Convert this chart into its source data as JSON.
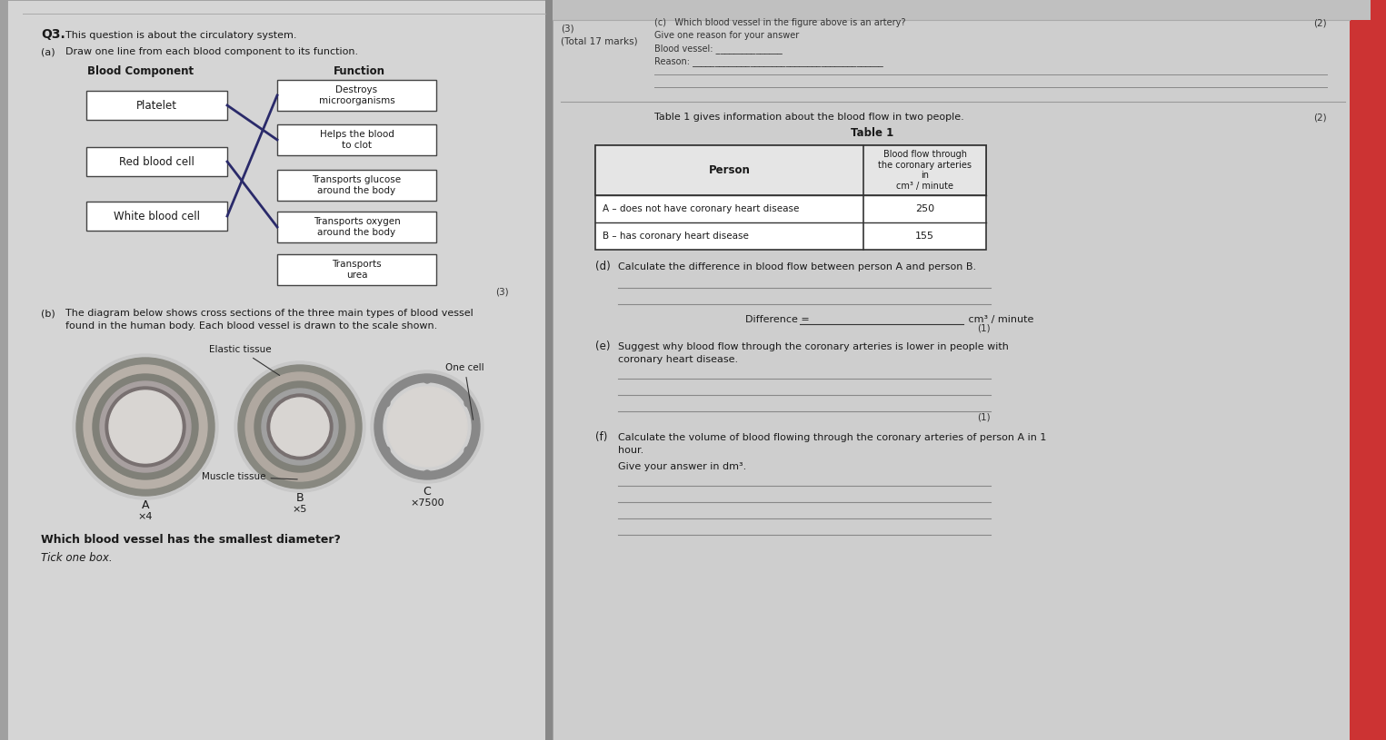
{
  "bg_color": "#b0b0b0",
  "page_bg_left": "#d8d8d8",
  "page_bg_right": "#d0d0d0",
  "q3_title": "Q3.",
  "q3_subtitle": "This question is about the circulatory system.",
  "part_a_label": "(a)",
  "part_a_text": "Draw one line from each blood component to its function.",
  "blood_component_header": "Blood Component",
  "function_header": "Function",
  "components": [
    "Platelet",
    "Red blood cell",
    "White blood cell"
  ],
  "functions": [
    "Destroys\nmicroorganisms",
    "Helps the blood\nto clot",
    "Transports glucose\naround the body",
    "Transports oxygen\naround the body",
    "Transports\nurea"
  ],
  "part_b_label": "(b)",
  "part_b_text_1": "The diagram below shows cross sections of the three main types of blood vessel",
  "part_b_text_2": "found in the human body. Each blood vessel is drawn to the scale shown.",
  "elastic_tissue_label": "Elastic tissue",
  "muscle_tissue_label": "Muscle tissue",
  "one_cell_label": "One cell",
  "vessel_a_label": "A",
  "vessel_a_scale": "×4",
  "vessel_b_label": "B",
  "vessel_b_scale": "×5",
  "vessel_c_label": "C",
  "vessel_c_scale": "×7500",
  "which_vessel_q": "Which blood vessel has the smallest diameter?",
  "tick_one_box": "Tick one box.",
  "marks_3": "(3)",
  "total_marks": "(Total 17 marks)",
  "top_c_question": "(c)   Which blood vessel in the figure above is an artery?",
  "top_c_reason": "Give one reason for your answer",
  "top_c_blood_vessel": "Blood vessel: _______________",
  "top_c_reason_line": "Reason: ___________________________________________",
  "top_c_marks": "(2)",
  "table_intro": "Table 1 gives information about the blood flow in two people.",
  "table_title": "Table 1",
  "table_col1": "Person",
  "table_col2": "Blood flow through\nthe coronary arteries\nin\ncm³ / minute",
  "table_row1_col1": "A – does not have coronary heart disease",
  "table_row1_col2": "250",
  "table_row2_col1": "B – has coronary heart disease",
  "table_row2_col2": "155",
  "part_d_label": "(d)",
  "part_d_text": "Calculate the difference in blood flow between person A and person B.",
  "difference_text": "Difference = ",
  "difference_units": " cm³ / minute",
  "part_d_marks": "(1)",
  "part_e_label": "(e)",
  "part_e_text_1": "Suggest why blood flow through the coronary arteries is lower in people with",
  "part_e_text_2": "coronary heart disease.",
  "part_e_marks": "(1)",
  "part_f_label": "(f)",
  "part_f_text_1": "Calculate the volume of blood flowing through the coronary arteries of person A in 1",
  "part_f_text_2": "hour.",
  "part_f_text_3": "Give your answer in dm³.",
  "table_marks": "(2)"
}
